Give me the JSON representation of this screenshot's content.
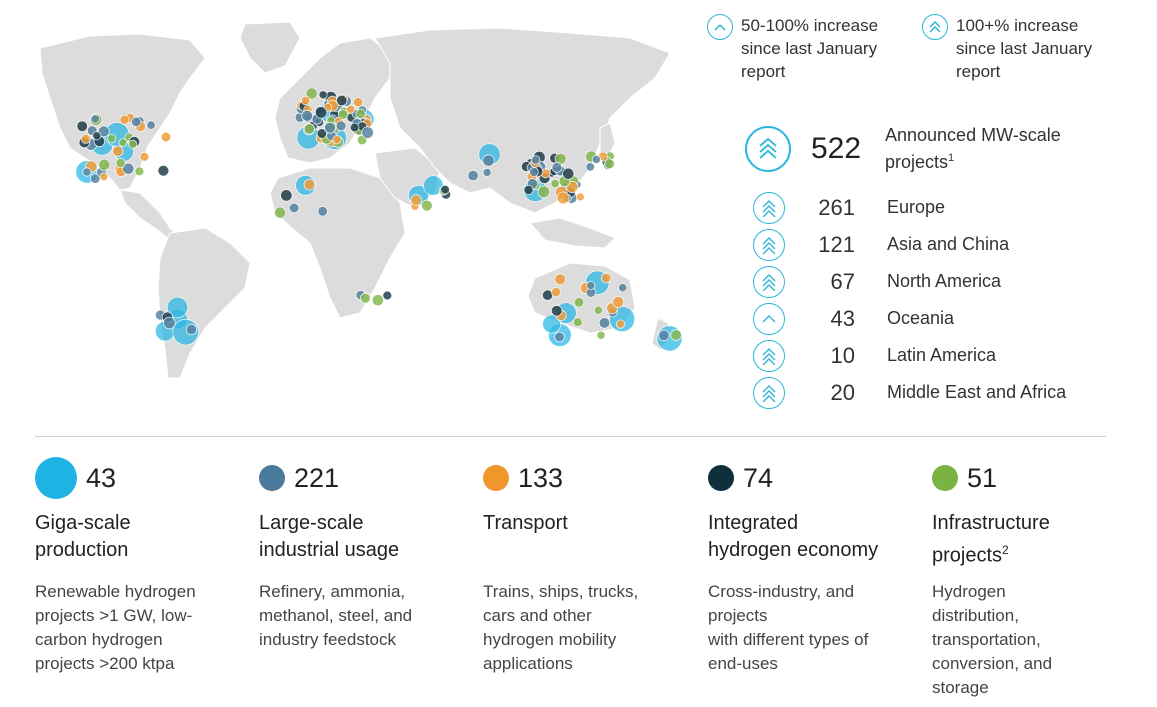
{
  "legend": {
    "mid_increase": "50-100% increase\nsince last January\nreport",
    "high_increase": "100+% increase\nsince last January\nreport"
  },
  "total": {
    "count": "522",
    "label": "Announced MW-scale\nprojects",
    "footnote": "1"
  },
  "regions": [
    {
      "count": "261",
      "name": "Europe",
      "growth": "100+%"
    },
    {
      "count": "121",
      "name": "Asia and China",
      "growth": "100+%"
    },
    {
      "count": "67",
      "name": "North America",
      "growth": "100+%"
    },
    {
      "count": "43",
      "name": "Oceania",
      "growth": "50-100%"
    },
    {
      "count": "10",
      "name": "Latin America",
      "growth": "100+%"
    },
    {
      "count": "20",
      "name": "Middle East and Africa",
      "growth": "100+%"
    }
  ],
  "categories": [
    {
      "key": "giga",
      "count": "43",
      "title": "Giga-scale\nproduction",
      "footnote": "",
      "desc": "Renewable hydrogen\nprojects >1 GW, low-\ncarbon hydrogen\nprojects >200 ktpa",
      "color": "#1fb3e3"
    },
    {
      "key": "industrial",
      "count": "221",
      "title": "Large-scale\nindustrial usage",
      "footnote": "",
      "desc": "Refinery, ammonia,\nmethanol, steel, and\nindustry feedstock",
      "color": "#4a7a9b"
    },
    {
      "key": "transport",
      "count": "133",
      "title": "Transport",
      "footnote": "",
      "desc": "Trains, ships, trucks,\ncars and other\nhydrogen mobility\napplications",
      "color": "#f0962a"
    },
    {
      "key": "integrated",
      "count": "74",
      "title": "Integrated\nhydrogen economy",
      "footnote": "",
      "desc": "Cross-industry, and\nprojects\nwith different types of\nend-uses",
      "color": "#0f2f3d"
    },
    {
      "key": "infrastructure",
      "count": "51",
      "title": "Infrastructure\nprojects",
      "footnote": "2",
      "desc": "Hydrogen\ndistribution,\ntransportation,\nconversion, and\nstorage",
      "color": "#7bb342"
    }
  ],
  "colors": {
    "accent": "#2bb7d9",
    "land": "#dcdcdc"
  }
}
